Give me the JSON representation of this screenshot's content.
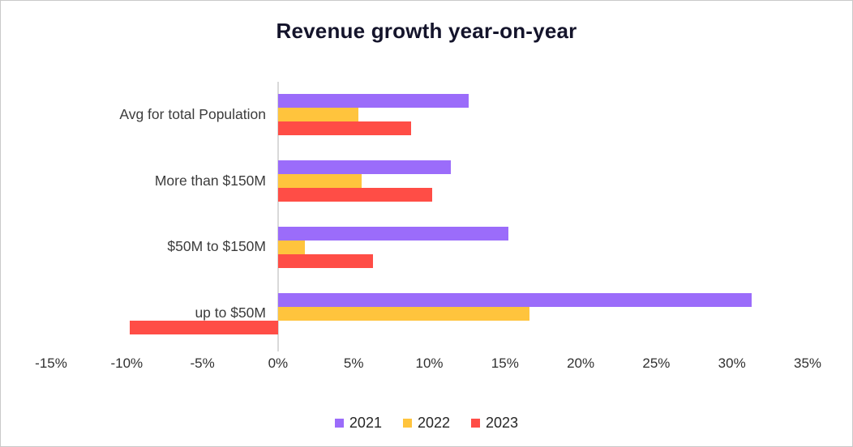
{
  "title": "Revenue growth year-on-year",
  "colors": {
    "series_2021": "#9b6cfa",
    "series_2022": "#ffc43d",
    "series_2023": "#ff4d46",
    "axis_line": "#d9d9d9",
    "title_text": "#14142b",
    "label_text": "#3c3c3c"
  },
  "chart_data": {
    "type": "bar",
    "orientation": "horizontal",
    "title": "Revenue growth year-on-year",
    "xlabel": "",
    "ylabel": "",
    "grid": false,
    "legend_position": "bottom",
    "xlim": [
      -15,
      35
    ],
    "xticks": [
      {
        "value": -15,
        "label": "-15%"
      },
      {
        "value": -10,
        "label": "-10%"
      },
      {
        "value": -5,
        "label": "-5%"
      },
      {
        "value": 0,
        "label": "0%"
      },
      {
        "value": 5,
        "label": "5%"
      },
      {
        "value": 10,
        "label": "10%"
      },
      {
        "value": 15,
        "label": "15%"
      },
      {
        "value": 20,
        "label": "20%"
      },
      {
        "value": 25,
        "label": "25%"
      },
      {
        "value": 30,
        "label": "30%"
      },
      {
        "value": 35,
        "label": "35%"
      }
    ],
    "categories": [
      "Avg for total Population",
      "More than $150M",
      "$50M to $150M",
      "up to $50M"
    ],
    "series": [
      {
        "name": "2021",
        "color": "#9b6cfa",
        "values": [
          12.6,
          11.4,
          15.2,
          31.3
        ]
      },
      {
        "name": "2022",
        "color": "#ffc43d",
        "values": [
          5.3,
          5.5,
          1.8,
          16.6
        ]
      },
      {
        "name": "2023",
        "color": "#ff4d46",
        "values": [
          8.8,
          10.2,
          6.3,
          -9.8
        ]
      }
    ]
  }
}
